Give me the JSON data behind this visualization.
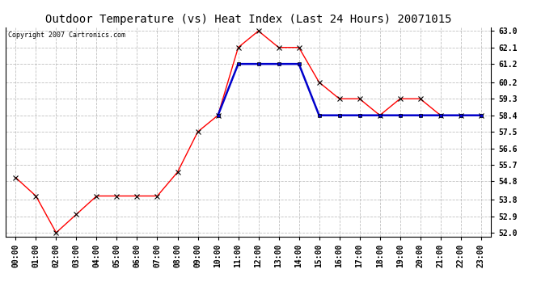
{
  "title": "Outdoor Temperature (vs) Heat Index (Last 24 Hours) 20071015",
  "copyright_text": "Copyright 2007 Cartronics.com",
  "hours": [
    "00:00",
    "01:00",
    "02:00",
    "03:00",
    "04:00",
    "05:00",
    "06:00",
    "07:00",
    "08:00",
    "09:00",
    "10:00",
    "11:00",
    "12:00",
    "13:00",
    "14:00",
    "15:00",
    "16:00",
    "17:00",
    "18:00",
    "19:00",
    "20:00",
    "21:00",
    "22:00",
    "23:00"
  ],
  "temp_red": [
    55.0,
    54.0,
    52.0,
    53.0,
    54.0,
    54.0,
    54.0,
    54.0,
    55.3,
    57.5,
    58.4,
    62.1,
    63.0,
    62.1,
    62.1,
    60.2,
    59.3,
    59.3,
    58.4,
    59.3,
    59.3,
    58.4,
    58.4,
    58.4
  ],
  "heat_blue": [
    null,
    null,
    null,
    null,
    null,
    null,
    null,
    null,
    null,
    null,
    58.4,
    61.2,
    61.2,
    61.2,
    61.2,
    58.4,
    58.4,
    58.4,
    58.4,
    58.4,
    58.4,
    58.4,
    58.4,
    58.4
  ],
  "ylim": [
    52.0,
    63.0
  ],
  "yticks": [
    52.0,
    52.9,
    53.8,
    54.8,
    55.7,
    56.6,
    57.5,
    58.4,
    59.3,
    60.2,
    61.2,
    62.1,
    63.0
  ],
  "red_color": "#ff0000",
  "blue_color": "#0000cc",
  "bg_color": "#ffffff",
  "plot_bg": "#ffffff",
  "grid_color": "#b0b0b0",
  "title_fontsize": 10,
  "tick_fontsize": 7,
  "copyright_fontsize": 6
}
